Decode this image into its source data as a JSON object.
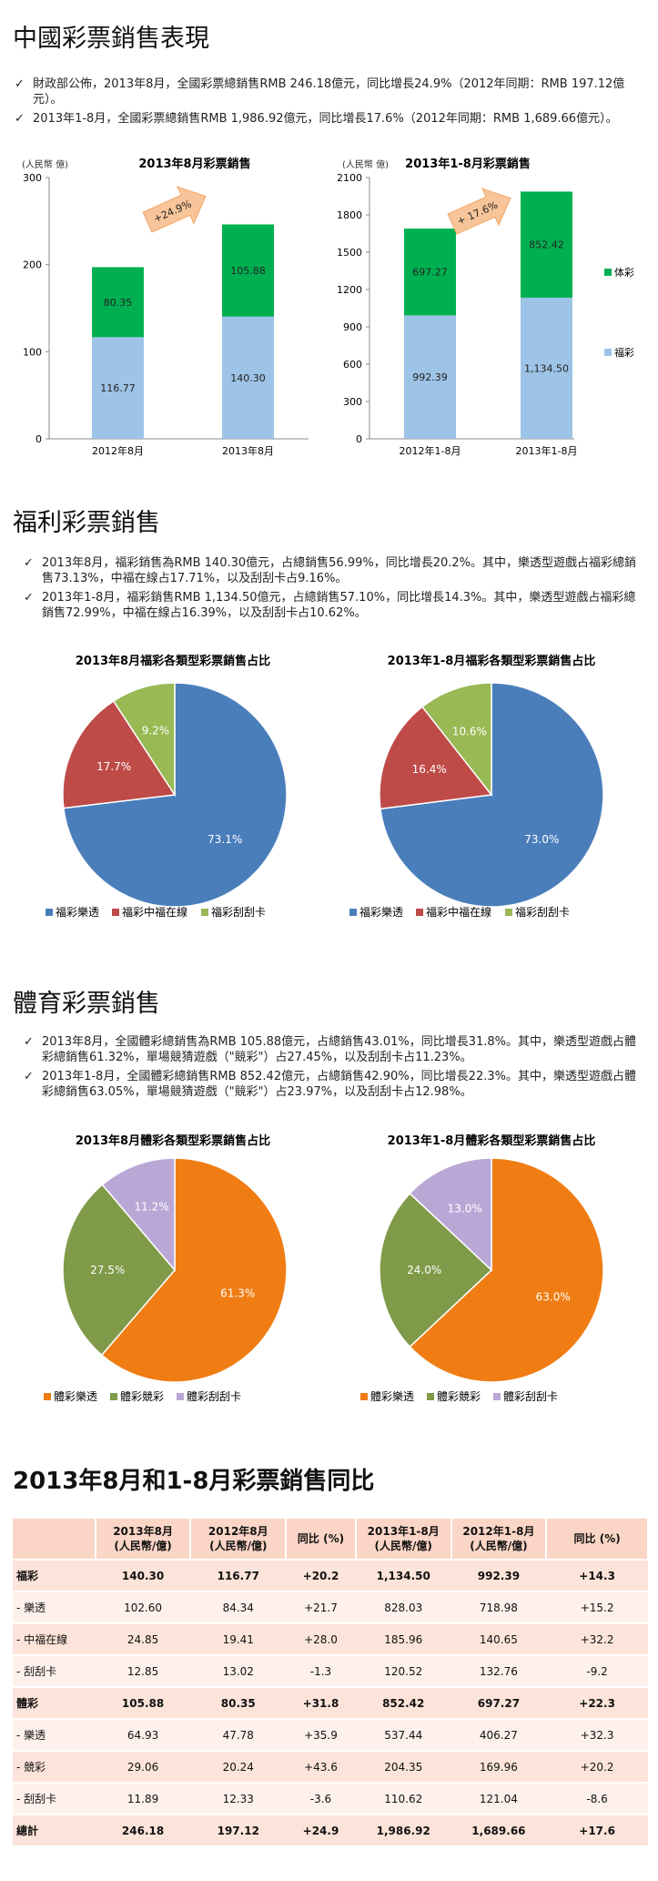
{
  "sections": {
    "main_title": "中國彩票銷售表現",
    "welfare_title": "福利彩票銷售",
    "sports_title": "體育彩票銷售",
    "compare_title": "2013年8月和1-8月彩票銷售同比"
  },
  "bullets_main": [
    "財政部公佈，2013年8月，全國彩票總銷售RMB 246.18億元，同比增長24.9%（2012年同期：RMB 197.12億元）。",
    "2013年1-8月，全國彩票總銷售RMB 1,986.92億元，同比增長17.6%（2012年同期：RMB 1,689.66億元）。"
  ],
  "bullets_welfare": [
    "2013年8月，福彩銷售為RMB 140.30億元，占總銷售56.99%，同比增長20.2%。其中，樂透型遊戲占福彩總銷售73.13%，中福在線占17.71%，以及刮刮卡占9.16%。",
    "2013年1-8月，福彩銷售RMB 1,134.50億元，占總銷售57.10%，同比增長14.3%。其中，樂透型遊戲占福彩總銷售72.99%，中福在線占16.39%，以及刮刮卡占10.62%。"
  ],
  "bullets_sports": [
    "2013年8月，全國體彩總銷售為RMB 105.88億元，占總銷售43.01%，同比增長31.8%。其中，樂透型遊戲占體彩總銷售61.32%，單場競猜遊戲（\"競彩\"）占27.45%，以及刮刮卡占11.23%。",
    "2013年1-8月，全國體彩總銷售RMB 852.42億元，占總銷售42.90%，同比增長22.3%。其中，樂透型遊戲占體彩總銷售63.05%，單場競猜遊戲（\"競彩\"）占23.97%，以及刮刮卡占12.98%。"
  ],
  "chart_data": [
    {
      "type": "bar",
      "stacked": true,
      "title": "2013年8月彩票銷售",
      "unit_label": "(人民幣 億)",
      "categories": [
        "2012年8月",
        "2013年8月"
      ],
      "series": [
        {
          "name": "福彩",
          "values": [
            116.77,
            140.3
          ],
          "color": "#9dc3e6"
        },
        {
          "name": "体彩",
          "values": [
            80.35,
            105.88
          ],
          "color": "#00b050"
        }
      ],
      "value_labels": [
        [
          "116.77",
          "140.30"
        ],
        [
          "80.35",
          "105.88"
        ]
      ],
      "ylim": [
        0,
        300
      ],
      "yticks": [
        "0",
        "100",
        "200",
        "300"
      ],
      "arrow_label": "+24.9%"
    },
    {
      "type": "bar",
      "stacked": true,
      "title": "2013年1-8月彩票銷售",
      "unit_label": "(人民幣 億)",
      "categories": [
        "2012年1-8月",
        "2013年1-8月"
      ],
      "series": [
        {
          "name": "福彩",
          "values": [
            992.39,
            1134.5
          ],
          "color": "#9dc3e6"
        },
        {
          "name": "体彩",
          "values": [
            697.27,
            852.42
          ],
          "color": "#00b050"
        }
      ],
      "value_labels": [
        [
          "992.39",
          "1,134.50"
        ],
        [
          "697.27",
          "852.42"
        ]
      ],
      "ylim": [
        0,
        2100
      ],
      "yticks": [
        "0",
        "300",
        "600",
        "900",
        "1200",
        "1500",
        "1800",
        "2100"
      ],
      "arrow_label": "+ 17.6%",
      "legend": [
        "体彩",
        "福彩"
      ]
    },
    {
      "type": "pie",
      "title": "2013年8月福彩各類型彩票銷售占比",
      "slices": [
        {
          "name": "福彩樂透",
          "value": 73.1,
          "label": "73.1%",
          "color": "#4a7ebb"
        },
        {
          "name": "福彩中福在線",
          "value": 17.7,
          "label": "17.7%",
          "color": "#be4b48"
        },
        {
          "name": "福彩刮刮卡",
          "value": 9.2,
          "label": "9.2%",
          "color": "#98b954"
        }
      ]
    },
    {
      "type": "pie",
      "title": "2013年1-8月福彩各類型彩票銷售占比",
      "slices": [
        {
          "name": "福彩樂透",
          "value": 73.0,
          "label": "73.0%",
          "color": "#4a7ebb"
        },
        {
          "name": "福彩中福在線",
          "value": 16.4,
          "label": "16.4%",
          "color": "#be4b48"
        },
        {
          "name": "福彩刮刮卡",
          "value": 10.6,
          "label": "10.6%",
          "color": "#98b954"
        }
      ]
    },
    {
      "type": "pie",
      "title": "2013年8月體彩各類型彩票銷售占比",
      "slices": [
        {
          "name": "體彩樂透",
          "value": 61.3,
          "label": "61.3%",
          "color": "#f07d14"
        },
        {
          "name": "體彩競彩",
          "value": 27.5,
          "label": "27.5%",
          "color": "#7f9a48"
        },
        {
          "name": "體彩刮刮卡",
          "value": 11.2,
          "label": "11.2%",
          "color": "#b9a8d6"
        }
      ]
    },
    {
      "type": "pie",
      "title": "2013年1-8月體彩各類型彩票銷售占比",
      "slices": [
        {
          "name": "體彩樂透",
          "value": 63.0,
          "label": "63.0%",
          "color": "#f07d14"
        },
        {
          "name": "體彩競彩",
          "value": 24.0,
          "label": "24.0%",
          "color": "#7f9a48"
        },
        {
          "name": "體彩刮刮卡",
          "value": 13.0,
          "label": "13.0%",
          "color": "#b9a8d6"
        }
      ]
    }
  ],
  "table": {
    "headers": [
      "",
      "2013年8月\n(人民幣/億)",
      "2012年8月\n(人民幣/億)",
      "同比 (%)",
      "2013年1-8月\n(人民幣/億)",
      "2012年1-8月\n(人民幣/億)",
      "同比 (%)"
    ],
    "rows": [
      {
        "bold": true,
        "cells": [
          "福彩",
          "140.30",
          "116.77",
          "+20.2",
          "1,134.50",
          "992.39",
          "+14.3"
        ]
      },
      {
        "bold": false,
        "cells": [
          "- 樂透",
          "102.60",
          "84.34",
          "+21.7",
          "828.03",
          "718.98",
          "+15.2"
        ]
      },
      {
        "bold": false,
        "cells": [
          "- 中福在線",
          "24.85",
          "19.41",
          "+28.0",
          "185.96",
          "140.65",
          "+32.2"
        ]
      },
      {
        "bold": false,
        "cells": [
          "- 刮刮卡",
          "12.85",
          "13.02",
          "-1.3",
          "120.52",
          "132.76",
          "-9.2"
        ]
      },
      {
        "bold": true,
        "cells": [
          "體彩",
          "105.88",
          "80.35",
          "+31.8",
          "852.42",
          "697.27",
          "+22.3"
        ]
      },
      {
        "bold": false,
        "cells": [
          "- 樂透",
          "64.93",
          "47.78",
          "+35.9",
          "537.44",
          "406.27",
          "+32.3"
        ]
      },
      {
        "bold": false,
        "cells": [
          "- 競彩",
          "29.06",
          "20.24",
          "+43.6",
          "204.35",
          "169.96",
          "+20.2"
        ]
      },
      {
        "bold": false,
        "cells": [
          "- 刮刮卡",
          "11.89",
          "12.33",
          "-3.6",
          "110.62",
          "121.04",
          "-8.6"
        ]
      },
      {
        "bold": true,
        "cells": [
          "總計",
          "246.18",
          "197.12",
          "+24.9",
          "1,986.92",
          "1,689.66",
          "+17.6"
        ]
      }
    ]
  }
}
